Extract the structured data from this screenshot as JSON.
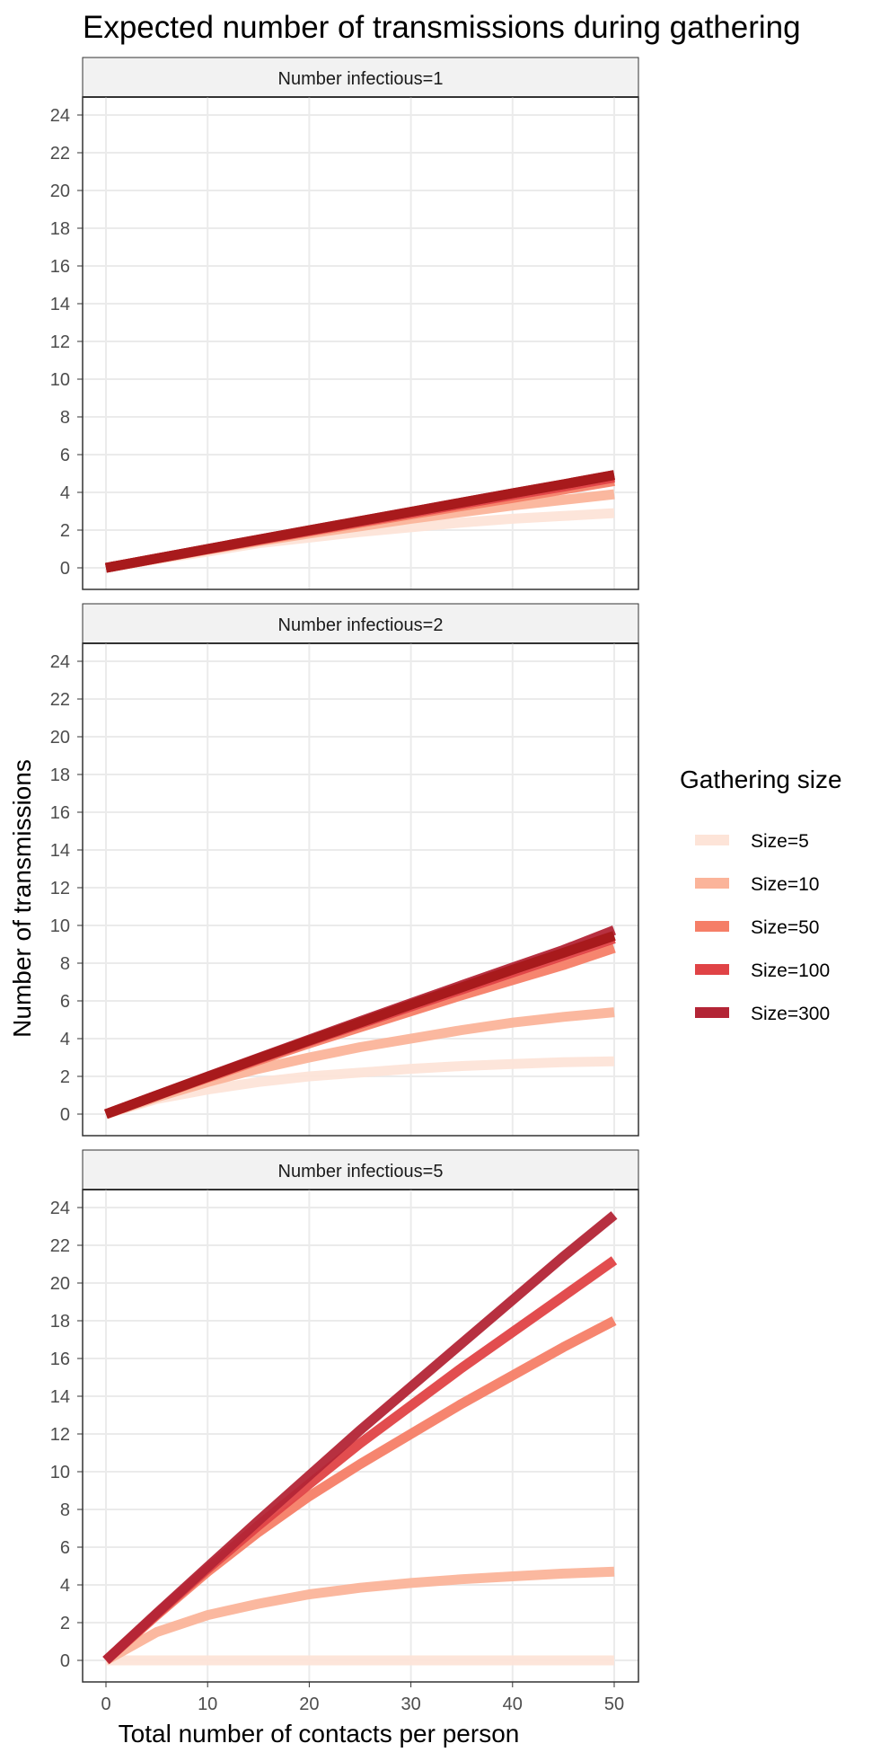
{
  "chart_data": {
    "type": "line",
    "title": "Expected number of transmissions during gathering",
    "xlabel": "Total number of contacts per person",
    "ylabel": "Number of transmissions",
    "xlim": [
      0,
      50
    ],
    "ylim": [
      0,
      24
    ],
    "x_ticks": [
      "0",
      "10",
      "20",
      "30",
      "40",
      "50"
    ],
    "y_ticks": [
      "0",
      "2",
      "4",
      "6",
      "8",
      "10",
      "12",
      "14",
      "16",
      "18",
      "20",
      "22",
      "24"
    ],
    "grid": true,
    "legend_title": "Gathering size",
    "legend_position": "right",
    "x": [
      0,
      5,
      10,
      15,
      20,
      25,
      30,
      35,
      40,
      45,
      50
    ],
    "legend": [
      {
        "name": "Size=5",
        "color": "#fde4d8"
      },
      {
        "name": "Size=10",
        "color": "#fbb49a"
      },
      {
        "name": "Size=50",
        "color": "#f57e67"
      },
      {
        "name": "Size=100",
        "color": "#e04346"
      },
      {
        "name": "Size=300",
        "color": "#b32536"
      }
    ],
    "panels": [
      {
        "strip": "Number infectious=1",
        "series": [
          {
            "name": "Size=5",
            "color": "#fde4d8",
            "values": [
              0,
              0.46,
              0.85,
              1.3,
              1.6,
              1.9,
              2.15,
              2.4,
              2.6,
              2.75,
              2.9
            ]
          },
          {
            "name": "Size=10",
            "color": "#fbb49a",
            "values": [
              0,
              0.48,
              0.95,
              1.4,
              1.82,
              2.2,
              2.6,
              2.95,
              3.3,
              3.6,
              3.9
            ]
          },
          {
            "name": "Size=50",
            "color": "#f57e67",
            "values": [
              0,
              0.5,
              0.98,
              1.45,
              1.92,
              2.38,
              2.83,
              3.27,
              3.7,
              4.15,
              4.6
            ]
          },
          {
            "name": "Size=100",
            "color": "#e04346",
            "values": [
              0,
              0.5,
              0.99,
              1.48,
              1.96,
              2.44,
              2.91,
              3.38,
              3.85,
              4.3,
              4.78
            ]
          },
          {
            "name": "Size=300",
            "color": "#b32536",
            "values": [
              0,
              0.5,
              1.0,
              1.5,
              1.99,
              2.48,
              2.97,
              3.46,
              3.95,
              4.43,
              4.92
            ]
          },
          {
            "name": "",
            "color": "#a81a1c",
            "values": [
              0,
              0.5,
              1.0,
              1.5,
              1.99,
              2.48,
              2.97,
              3.46,
              3.95,
              4.43,
              4.92
            ]
          }
        ]
      },
      {
        "strip": "Number infectious=2",
        "series": [
          {
            "name": "Size=5",
            "color": "#fde4d8",
            "values": [
              0,
              0.8,
              1.3,
              1.7,
              2.0,
              2.2,
              2.4,
              2.55,
              2.65,
              2.75,
              2.8
            ]
          },
          {
            "name": "Size=10",
            "color": "#fbb49a",
            "values": [
              0,
              0.9,
              1.7,
              2.4,
              3.0,
              3.55,
              4.0,
              4.45,
              4.85,
              5.15,
              5.4
            ]
          },
          {
            "name": "Size=50",
            "color": "#f57e67",
            "values": [
              0,
              0.98,
              1.92,
              2.85,
              3.75,
              4.6,
              5.45,
              6.3,
              7.1,
              7.9,
              8.8
            ]
          },
          {
            "name": "Size=100",
            "color": "#e04346",
            "values": [
              0,
              0.99,
              1.96,
              2.92,
              3.86,
              4.78,
              5.7,
              6.6,
              7.5,
              8.4,
              9.3
            ]
          },
          {
            "name": "Size=300",
            "color": "#b32536",
            "values": [
              0,
              1.0,
              1.99,
              2.97,
              3.95,
              4.92,
              5.88,
              6.83,
              7.77,
              8.7,
              9.75
            ]
          },
          {
            "name": "",
            "color": "#a81a1c",
            "values": [
              0,
              0.99,
              1.97,
              2.95,
              3.9,
              4.85,
              5.8,
              6.72,
              7.65,
              8.55,
              9.45
            ]
          }
        ]
      },
      {
        "strip": "Number infectious=5",
        "series": [
          {
            "name": "Size=5",
            "color": "#fde4d8",
            "values": [
              0,
              0,
              0,
              0,
              0,
              0,
              0,
              0,
              0,
              0,
              0
            ]
          },
          {
            "name": "Size=10",
            "color": "#fbb49a",
            "values": [
              0,
              1.5,
              2.4,
              3.0,
              3.5,
              3.85,
              4.1,
              4.3,
              4.45,
              4.6,
              4.7
            ]
          },
          {
            "name": "Size=50",
            "color": "#f57e67",
            "values": [
              0,
              2.4,
              4.7,
              6.8,
              8.7,
              10.4,
              12.0,
              13.6,
              15.1,
              16.6,
              18.0
            ]
          },
          {
            "name": "Size=100",
            "color": "#e04346",
            "values": [
              0,
              2.45,
              4.85,
              7.15,
              9.35,
              11.5,
              13.5,
              15.5,
              17.4,
              19.3,
              21.2
            ]
          },
          {
            "name": "Size=300",
            "color": "#b32536",
            "values": [
              0,
              2.5,
              4.95,
              7.4,
              9.8,
              12.2,
              14.5,
              16.8,
              19.1,
              21.4,
              23.6
            ]
          }
        ]
      }
    ]
  }
}
